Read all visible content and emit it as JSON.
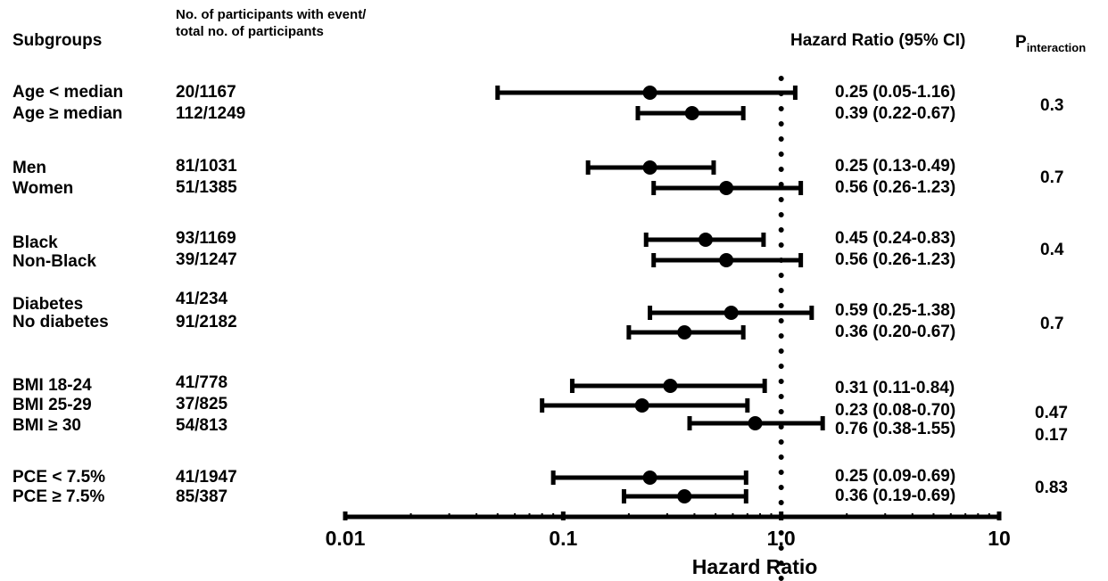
{
  "headers": {
    "subgroups": "Subgroups",
    "participants_line1": "No. of participants with event/",
    "participants_line2": "total no. of participants",
    "hr": "Hazard Ratio (95%  CI)",
    "p_main": "P",
    "p_sub": "interaction"
  },
  "chart_data": {
    "type": "forest",
    "xlabel": "Hazard Ratio",
    "xscale": "log",
    "xlim": [
      0.01,
      10
    ],
    "xticks": [
      "0.01",
      "0.1",
      "1.0",
      "10"
    ],
    "reference_line": 1.0,
    "rows": [
      {
        "label": "Age < median",
        "events": "20/1167",
        "hr": 0.25,
        "lo": 0.05,
        "hi": 1.16,
        "ci_text": "0.25 (0.05-1.16)"
      },
      {
        "label": "Age ≥ median",
        "events": "112/1249",
        "hr": 0.39,
        "lo": 0.22,
        "hi": 0.67,
        "ci_text": "0.39 (0.22-0.67)"
      },
      {
        "label": "Men",
        "events": "81/1031",
        "hr": 0.25,
        "lo": 0.13,
        "hi": 0.49,
        "ci_text": "0.25 (0.13-0.49)"
      },
      {
        "label": "Women",
        "events": "51/1385",
        "hr": 0.56,
        "lo": 0.26,
        "hi": 1.23,
        "ci_text": "0.56 (0.26-1.23)"
      },
      {
        "label": "Black",
        "events": "93/1169",
        "hr": 0.45,
        "lo": 0.24,
        "hi": 0.83,
        "ci_text": "0.45 (0.24-0.83)"
      },
      {
        "label": "Non-Black",
        "events": "39/1247",
        "hr": 0.56,
        "lo": 0.26,
        "hi": 1.23,
        "ci_text": "0.56 (0.26-1.23)"
      },
      {
        "label": "Diabetes",
        "events": "41/234",
        "hr": 0.59,
        "lo": 0.25,
        "hi": 1.38,
        "ci_text": "0.59 (0.25-1.38)"
      },
      {
        "label": "No diabetes",
        "events": "91/2182",
        "hr": 0.36,
        "lo": 0.2,
        "hi": 0.67,
        "ci_text": "0.36 (0.20-0.67)"
      },
      {
        "label": "BMI 18-24",
        "events": "41/778",
        "hr": 0.31,
        "lo": 0.11,
        "hi": 0.84,
        "ci_text": "0.31 (0.11-0.84)"
      },
      {
        "label": "BMI 25-29",
        "events": "37/825",
        "hr": 0.23,
        "lo": 0.08,
        "hi": 0.7,
        "ci_text": "0.23 (0.08-0.70)"
      },
      {
        "label": "BMI ≥ 30",
        "events": "54/813",
        "hr": 0.76,
        "lo": 0.38,
        "hi": 1.55,
        "ci_text": "0.76 (0.38-1.55)"
      },
      {
        "label": "PCE < 7.5%",
        "events": "41/1947",
        "hr": 0.25,
        "lo": 0.09,
        "hi": 0.69,
        "ci_text": "0.25 (0.09-0.69)"
      },
      {
        "label": "PCE ≥ 7.5%",
        "events": "85/387",
        "hr": 0.36,
        "lo": 0.19,
        "hi": 0.69,
        "ci_text": "0.36 (0.19-0.69)"
      }
    ],
    "p_interaction": [
      "0.3",
      "0.7",
      "0.4",
      "0.7",
      "0.47",
      "0.17",
      "0.83"
    ]
  }
}
